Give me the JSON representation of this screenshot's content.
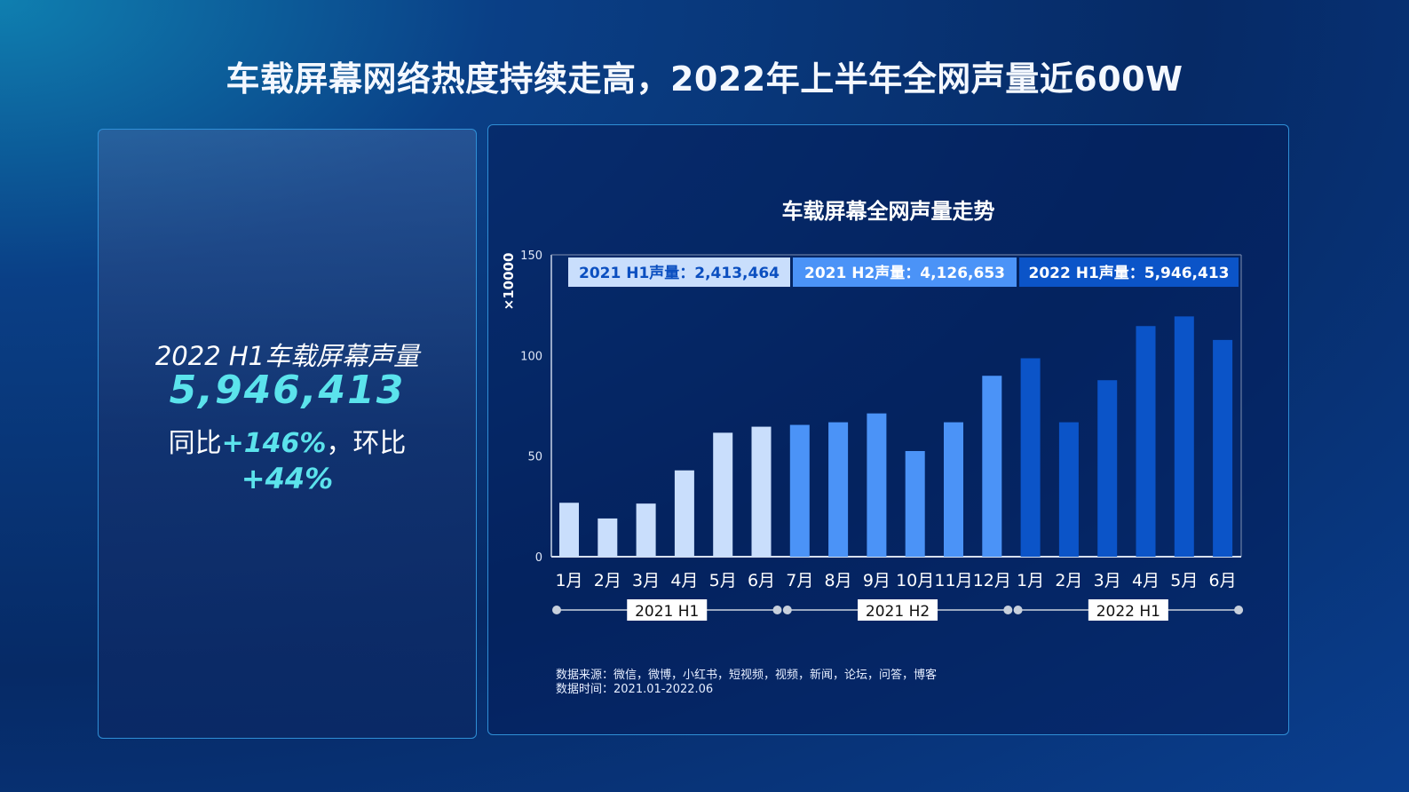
{
  "title": "车载屏幕网络热度持续走高，2022年上半年全网声量近600W",
  "left_panel": {
    "label": "2022 H1车载屏幕声量",
    "value": "5,946,413",
    "yoy_label": "同比",
    "yoy": "+146%",
    "sep": "，",
    "mom_label": "环比",
    "mom": "+44%"
  },
  "chart_data": {
    "type": "bar",
    "title": "车载屏幕全网声量走势",
    "ylabel": "×10000",
    "ylim": [
      0,
      150
    ],
    "yticks": [
      0,
      50,
      100,
      150
    ],
    "categories": [
      "1月",
      "2月",
      "3月",
      "4月",
      "5月",
      "6月",
      "7月",
      "8月",
      "9月",
      "10月",
      "11月",
      "12月",
      "1月",
      "2月",
      "3月",
      "4月",
      "5月",
      "6月"
    ],
    "values": [
      26.8,
      19.0,
      26.4,
      42.9,
      61.6,
      64.6,
      65.5,
      66.8,
      71.2,
      52.5,
      66.8,
      89.9,
      98.6,
      66.8,
      87.7,
      114.6,
      119.4,
      107.7
    ],
    "groups": [
      {
        "name": "2021 H1",
        "legend": "2021 H1声量：2,413,464",
        "color": "#c9defc",
        "text_color": "#0b4fc0"
      },
      {
        "name": "2021 H2",
        "legend": "2021 H2声量：4,126,653",
        "color": "#4b93f7",
        "text_color": "#ffffff"
      },
      {
        "name": "2022 H1",
        "legend": "2022 H1声量：5,946,413",
        "color": "#0b54c8",
        "text_color": "#ffffff"
      }
    ],
    "legend_position": "top",
    "grid": false
  },
  "source": {
    "line1": "数据来源：微信，微博，小红书，短视频，视频，新闻，论坛，问答，博客",
    "line2": "数据时间：2021.01-2022.06"
  }
}
